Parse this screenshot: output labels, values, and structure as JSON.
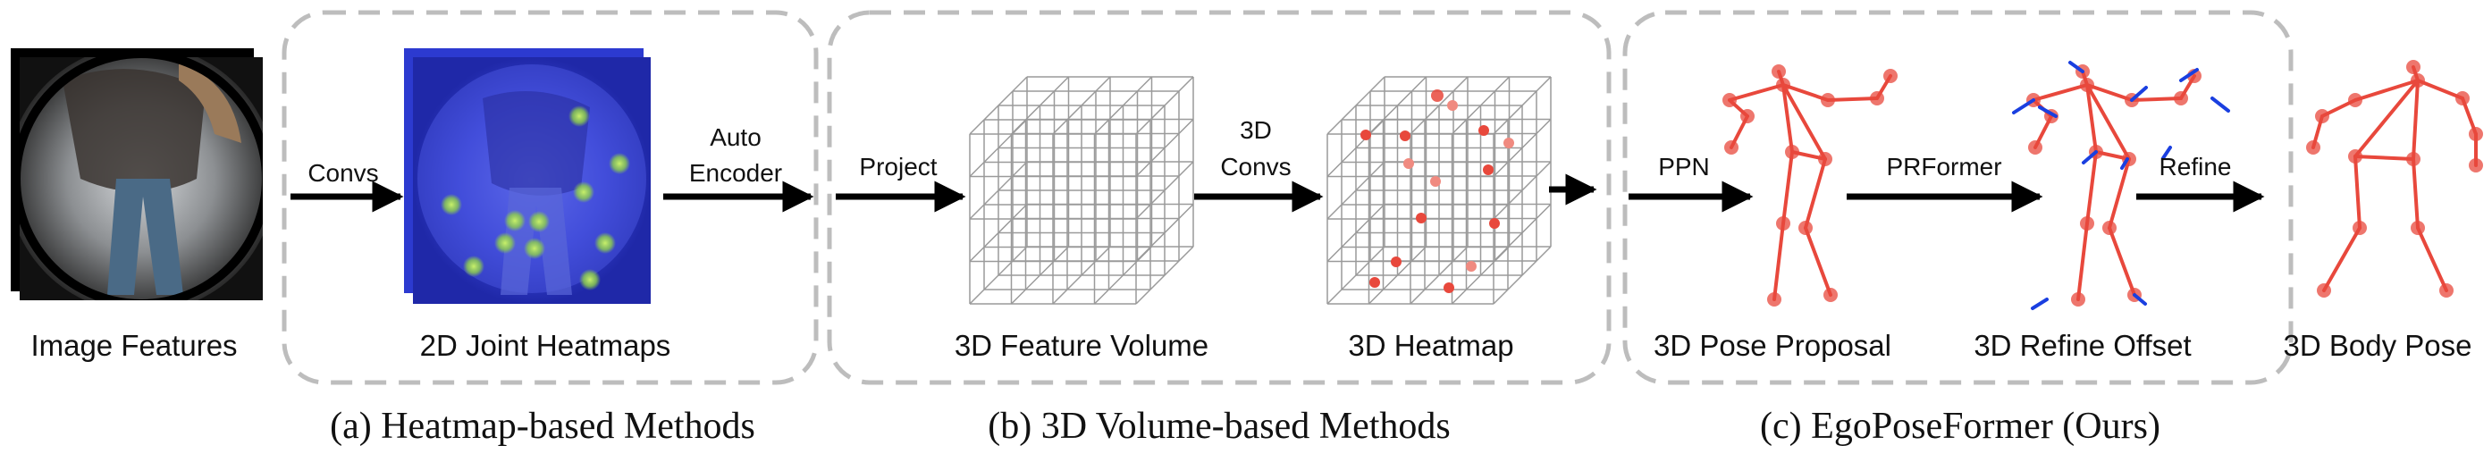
{
  "figure": {
    "stages": {
      "image_features": "Image Features",
      "joint_heatmaps_2d": "2D Joint Heatmaps",
      "feature_volume_3d": "3D Feature Volume",
      "heatmap_3d": "3D Heatmap",
      "pose_proposal_3d": "3D Pose Proposal",
      "refine_offset_3d": "3D Refine Offset",
      "body_pose_3d": "3D Body Pose"
    },
    "arrows": {
      "convs": "Convs",
      "auto_encoder_line1": "Auto",
      "auto_encoder_line2": "Encoder",
      "project": "Project",
      "convs3d_line1": "3D",
      "convs3d_line2": "Convs",
      "ppn": "PPN",
      "prformer": "PRFormer",
      "refine": "Refine"
    },
    "captions": {
      "a": "(a) Heatmap-based Methods",
      "b": "(b) 3D Volume-based Methods",
      "c": "(c) EgoPoseFormer (Ours)"
    },
    "colors": {
      "dashed_box": "#bdbdbd",
      "pose_red": "#e8483c",
      "offset_blue": "#1a3fe0",
      "heatmap_blue": "#2c3ad0",
      "heatmap_green": "#a8e05a",
      "grid_gray": "#9a9a9a"
    }
  }
}
